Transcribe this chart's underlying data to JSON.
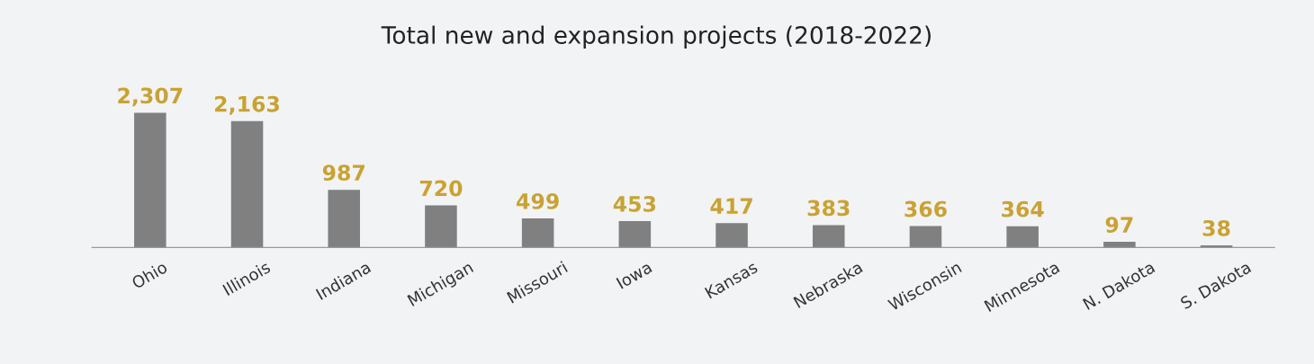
{
  "chart_data": {
    "type": "bar",
    "title": "Total new and expansion projects (2018-2022)",
    "categories": [
      "Ohio",
      "Illinois",
      "Indiana",
      "Michigan",
      "Missouri",
      "Iowa",
      "Kansas",
      "Nebraska",
      "Wisconsin",
      "Minnesota",
      "N. Dakota",
      "S. Dakota"
    ],
    "values": [
      2307,
      2163,
      987,
      720,
      499,
      453,
      417,
      383,
      366,
      364,
      97,
      38
    ],
    "value_labels": [
      "2,307",
      "2,163",
      "987",
      "720",
      "499",
      "453",
      "417",
      "383",
      "366",
      "364",
      "97",
      "38"
    ],
    "color": "#808080",
    "grid": false,
    "legend": false
  }
}
